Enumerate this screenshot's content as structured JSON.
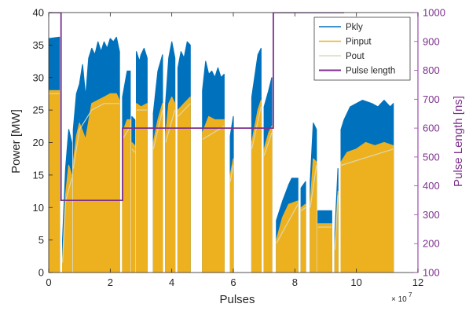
{
  "chart_data": {
    "type": "line",
    "xlabel": "Pulses",
    "x_exponent": "× 10^7",
    "x_exponent_base": "× 10",
    "x_exponent_power": "7",
    "ylabel_left": "Power [MW]",
    "ylabel_right": "Pulse Length [ns]",
    "xlim": [
      0,
      12
    ],
    "ylim_left": [
      0,
      40
    ],
    "ylim_right": [
      100,
      1000
    ],
    "xticks": [
      "0",
      "2",
      "4",
      "6",
      "8",
      "10",
      "12"
    ],
    "yticks_left": [
      "0",
      "5",
      "10",
      "15",
      "20",
      "25",
      "30",
      "35",
      "40"
    ],
    "yticks_right": [
      "100",
      "200",
      "300",
      "400",
      "500",
      "600",
      "700",
      "800",
      "900",
      "1000"
    ],
    "grid": false,
    "legend_position": "top-right",
    "legend": [
      "Pkly",
      "Pinput",
      "Pout",
      "Pulse length"
    ],
    "colors": {
      "Pkly": "#0072bd",
      "Pinput": "#edb120",
      "Pout": "#d9dcc0",
      "Pulse length": "#7e2f8e",
      "right_axis": "#a04ab0"
    },
    "series": [
      {
        "name": "Pkly",
        "axis": "left",
        "segments": [
          [
            [
              0.0,
              36.0
            ],
            [
              0.35,
              36.2
            ]
          ],
          [
            [
              0.45,
              5.0
            ],
            [
              0.55,
              16.0
            ],
            [
              0.65,
              22.0
            ],
            [
              0.75,
              20.0
            ]
          ],
          [
            [
              0.8,
              22.0
            ],
            [
              0.9,
              27.5
            ],
            [
              1.0,
              29.0
            ],
            [
              1.1,
              32.0
            ],
            [
              1.2,
              27.0
            ],
            [
              1.3,
              33.0
            ],
            [
              1.4,
              34.5
            ],
            [
              1.5,
              33.5
            ],
            [
              1.6,
              35.5
            ],
            [
              1.7,
              34.0
            ],
            [
              1.8,
              35.5
            ],
            [
              1.9,
              34.5
            ],
            [
              2.0,
              36.0
            ],
            [
              2.1,
              35.5
            ],
            [
              2.2,
              36.2
            ],
            [
              2.3,
              34.0
            ]
          ],
          [
            [
              2.4,
              27.0
            ],
            [
              2.55,
              31.0
            ],
            [
              2.65,
              31.0
            ]
          ],
          [
            [
              2.7,
              24.0
            ],
            [
              2.8,
              23.5
            ]
          ],
          [
            [
              2.85,
              34.0
            ],
            [
              2.95,
              32.5
            ],
            [
              3.0,
              33.5
            ],
            [
              3.1,
              34.5
            ],
            [
              3.2,
              33.0
            ]
          ],
          [
            [
              3.4,
              24.5
            ],
            [
              3.55,
              31.0
            ],
            [
              3.7,
              33.5
            ]
          ],
          [
            [
              3.8,
              26.0
            ],
            [
              3.9,
              33.0
            ],
            [
              4.0,
              35.5
            ],
            [
              4.1,
              33.0
            ]
          ],
          [
            [
              4.2,
              31.5
            ],
            [
              4.3,
              34.0
            ],
            [
              4.4,
              33.0
            ],
            [
              4.5,
              35.5
            ],
            [
              4.6,
              35.0
            ]
          ],
          [
            [
              5.0,
              28.0
            ],
            [
              5.1,
              32.5
            ],
            [
              5.2,
              30.5
            ],
            [
              5.3,
              31.0
            ],
            [
              5.4,
              30.0
            ],
            [
              5.5,
              31.5
            ],
            [
              5.6,
              30.0
            ],
            [
              5.7,
              30.5
            ]
          ],
          [
            [
              5.9,
              21.0
            ],
            [
              6.0,
              24.0
            ]
          ],
          [
            [
              6.6,
              27.0
            ],
            [
              6.8,
              33.5
            ],
            [
              6.9,
              34.5
            ]
          ],
          [
            [
              7.0,
              25.5
            ],
            [
              7.15,
              28.0
            ],
            [
              7.25,
              30.0
            ]
          ],
          [
            [
              7.4,
              8.0
            ],
            [
              7.6,
              11.0
            ],
            [
              7.8,
              13.5
            ],
            [
              7.9,
              14.5
            ],
            [
              8.1,
              14.5
            ]
          ],
          [
            [
              8.2,
              13.0
            ],
            [
              8.35,
              14.0
            ]
          ],
          [
            [
              8.5,
              14.0
            ],
            [
              8.6,
              23.0
            ],
            [
              8.7,
              22.0
            ]
          ],
          [
            [
              8.75,
              9.5
            ],
            [
              9.2,
              9.5
            ]
          ],
          [
            [
              9.3,
              6.0
            ],
            [
              9.4,
              16.0
            ]
          ],
          [
            [
              9.5,
              22.0
            ],
            [
              9.6,
              23.5
            ],
            [
              9.8,
              25.5
            ],
            [
              10.0,
              26.0
            ],
            [
              10.2,
              26.5
            ],
            [
              10.5,
              26.0
            ],
            [
              10.7,
              25.5
            ],
            [
              10.9,
              26.5
            ],
            [
              11.1,
              25.5
            ],
            [
              11.2,
              26.0
            ]
          ]
        ]
      },
      {
        "name": "Pinput",
        "axis": "left",
        "segments": [
          [
            [
              0.0,
              28.0
            ],
            [
              0.35,
              28.0
            ]
          ],
          [
            [
              0.45,
              2.0
            ],
            [
              0.55,
              12.0
            ],
            [
              0.65,
              16.5
            ],
            [
              0.75,
              15.0
            ]
          ],
          [
            [
              0.8,
              17.0
            ],
            [
              0.9,
              21.0
            ],
            [
              1.0,
              23.0
            ],
            [
              1.2,
              20.5
            ],
            [
              1.4,
              26.0
            ],
            [
              1.6,
              26.5
            ],
            [
              1.8,
              27.0
            ],
            [
              2.0,
              27.5
            ],
            [
              2.2,
              27.5
            ],
            [
              2.3,
              26.5
            ]
          ],
          [
            [
              2.4,
              21.5
            ],
            [
              2.55,
              23.5
            ],
            [
              2.65,
              23.5
            ]
          ],
          [
            [
              2.7,
              20.0
            ],
            [
              2.8,
              19.5
            ]
          ],
          [
            [
              2.85,
              26.0
            ],
            [
              3.0,
              25.5
            ],
            [
              3.2,
              26.0
            ]
          ],
          [
            [
              3.4,
              20.0
            ],
            [
              3.55,
              23.5
            ],
            [
              3.7,
              26.0
            ]
          ],
          [
            [
              3.8,
              21.0
            ],
            [
              3.9,
              26.0
            ],
            [
              4.0,
              27.0
            ],
            [
              4.1,
              26.0
            ]
          ],
          [
            [
              4.2,
              25.0
            ],
            [
              4.4,
              26.0
            ],
            [
              4.6,
              27.0
            ]
          ],
          [
            [
              5.0,
              21.5
            ],
            [
              5.2,
              24.0
            ],
            [
              5.4,
              23.5
            ],
            [
              5.7,
              23.5
            ]
          ],
          [
            [
              5.9,
              15.0
            ],
            [
              6.0,
              17.5
            ]
          ],
          [
            [
              6.6,
              20.0
            ],
            [
              6.8,
              25.0
            ],
            [
              6.9,
              26.5
            ]
          ],
          [
            [
              7.0,
              19.0
            ],
            [
              7.15,
              21.5
            ],
            [
              7.25,
              22.5
            ]
          ],
          [
            [
              7.4,
              5.0
            ],
            [
              7.6,
              8.5
            ],
            [
              7.8,
              10.5
            ],
            [
              8.1,
              11.0
            ]
          ],
          [
            [
              8.2,
              10.0
            ],
            [
              8.35,
              10.5
            ]
          ],
          [
            [
              8.5,
              10.5
            ],
            [
              8.6,
              17.5
            ],
            [
              8.7,
              17.0
            ]
          ],
          [
            [
              8.75,
              7.5
            ],
            [
              9.2,
              7.5
            ]
          ],
          [
            [
              9.3,
              4.0
            ],
            [
              9.4,
              12.5
            ]
          ],
          [
            [
              9.5,
              17.0
            ],
            [
              9.7,
              18.5
            ],
            [
              10.0,
              19.0
            ],
            [
              10.3,
              20.0
            ],
            [
              10.6,
              19.5
            ],
            [
              10.9,
              20.0
            ],
            [
              11.2,
              19.5
            ]
          ]
        ]
      },
      {
        "name": "Pout",
        "axis": "left",
        "segments": [
          [
            [
              0.0,
              27.5
            ],
            [
              0.35,
              27.5
            ]
          ],
          [
            [
              0.45,
              1.5
            ],
            [
              0.55,
              11.0
            ],
            [
              0.75,
              14.5
            ]
          ],
          [
            [
              0.8,
              16.0
            ],
            [
              1.0,
              22.0
            ],
            [
              1.4,
              25.0
            ],
            [
              1.8,
              26.0
            ],
            [
              2.3,
              26.0
            ]
          ],
          [
            [
              2.4,
              20.5
            ],
            [
              2.65,
              22.5
            ]
          ],
          [
            [
              2.7,
              19.0
            ],
            [
              2.8,
              18.5
            ]
          ],
          [
            [
              2.85,
              25.0
            ],
            [
              3.2,
              25.0
            ]
          ],
          [
            [
              3.4,
              19.0
            ],
            [
              3.7,
              25.0
            ]
          ],
          [
            [
              3.8,
              20.0
            ],
            [
              4.1,
              25.0
            ]
          ],
          [
            [
              4.2,
              24.0
            ],
            [
              4.6,
              26.0
            ]
          ],
          [
            [
              5.0,
              20.5
            ],
            [
              5.7,
              22.5
            ]
          ],
          [
            [
              5.9,
              14.0
            ],
            [
              6.0,
              16.5
            ]
          ],
          [
            [
              6.6,
              19.0
            ],
            [
              6.9,
              25.5
            ]
          ],
          [
            [
              7.0,
              18.0
            ],
            [
              7.25,
              21.5
            ]
          ],
          [
            [
              7.4,
              4.5
            ],
            [
              8.1,
              10.5
            ]
          ],
          [
            [
              8.2,
              9.5
            ],
            [
              8.35,
              10.0
            ]
          ],
          [
            [
              8.5,
              10.0
            ],
            [
              8.7,
              16.5
            ]
          ],
          [
            [
              8.75,
              7.0
            ],
            [
              9.2,
              7.0
            ]
          ],
          [
            [
              9.3,
              3.5
            ],
            [
              9.4,
              12.0
            ]
          ],
          [
            [
              9.5,
              16.5
            ],
            [
              11.2,
              19.0
            ]
          ]
        ]
      },
      {
        "name": "Pulse length",
        "axis": "right",
        "points": [
          [
            0.0,
            1000
          ],
          [
            0.4,
            1000
          ],
          [
            0.4,
            350
          ],
          [
            2.4,
            350
          ],
          [
            2.4,
            600
          ],
          [
            7.3,
            600
          ],
          [
            7.3,
            1000
          ],
          [
            9.6,
            1000
          ]
        ]
      }
    ]
  }
}
